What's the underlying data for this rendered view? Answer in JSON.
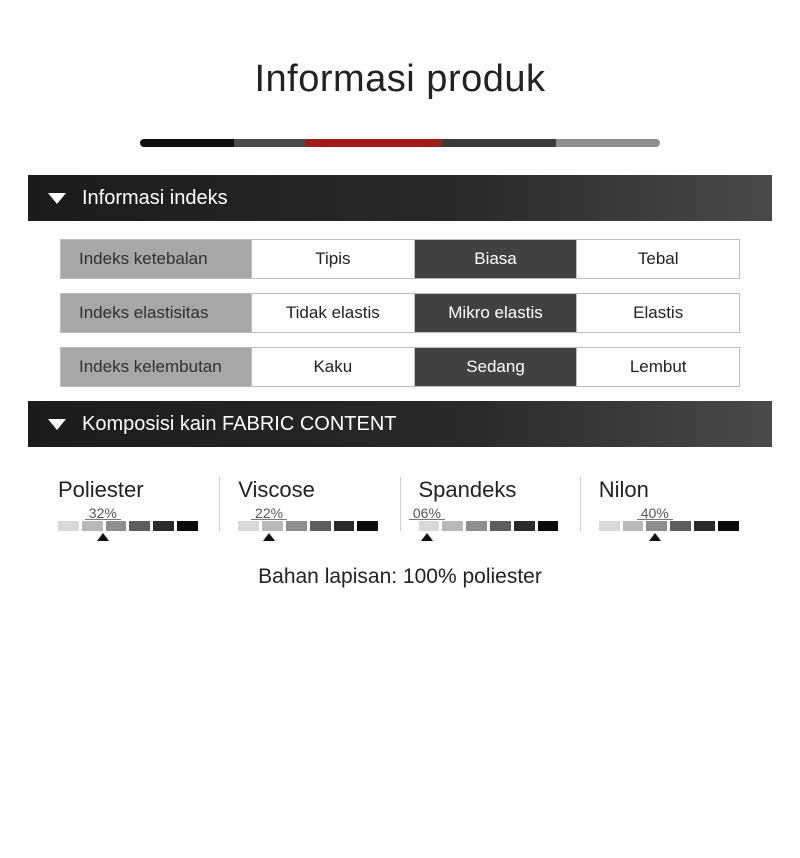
{
  "title": "Informasi produk",
  "divider_segments": [
    {
      "color": "#0f0f0f",
      "width_pct": 18
    },
    {
      "color": "#4a4a4a",
      "width_pct": 14
    },
    {
      "color": "#a21a1a",
      "width_pct": 26
    },
    {
      "color": "#3a3a3a",
      "width_pct": 22
    },
    {
      "color": "#8e8e8e",
      "width_pct": 20
    }
  ],
  "sections": {
    "index": {
      "header": "Informasi indeks",
      "rows": [
        {
          "label": "Indeks ketebalan",
          "options": [
            "Tipis",
            "Biasa",
            "Tebal"
          ],
          "selected": 1
        },
        {
          "label": "Indeks elastisitas",
          "options": [
            "Tidak elastis",
            "Mikro elastis",
            "Elastis"
          ],
          "selected": 1
        },
        {
          "label": "Indeks kelembutan",
          "options": [
            "Kaku",
            "Sedang",
            "Lembut"
          ],
          "selected": 1
        }
      ]
    },
    "fabric": {
      "header": "Komposisi kain FABRIC CONTENT",
      "gauge_colors": [
        "#d8d8d8",
        "#b8b8b8",
        "#8e8e8e",
        "#5e5e5e",
        "#2a2a2a",
        "#0a0a0a"
      ],
      "items": [
        {
          "name": "Poliester",
          "pct_label": "32%",
          "pct_value": 32
        },
        {
          "name": "Viscose",
          "pct_label": "22%",
          "pct_value": 22
        },
        {
          "name": "Spandeks",
          "pct_label": "06%",
          "pct_value": 6
        },
        {
          "name": "Nilon",
          "pct_label": "40%",
          "pct_value": 40
        }
      ],
      "footer": "Bahan lapisan: 100% poliester"
    }
  }
}
